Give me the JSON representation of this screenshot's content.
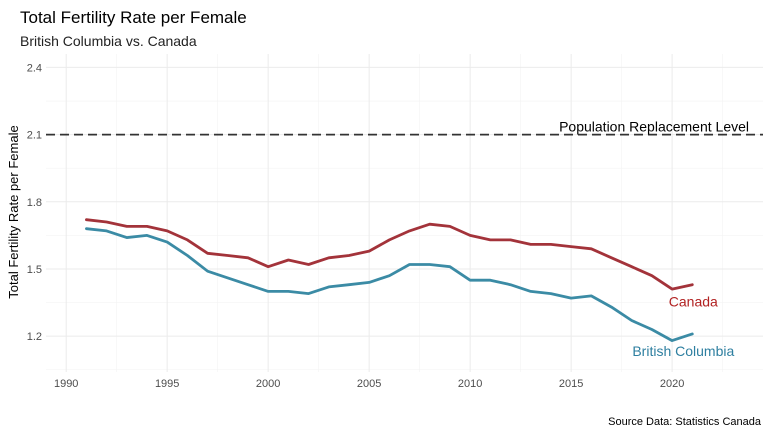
{
  "chart_data": {
    "type": "line",
    "title": "Total Fertility Rate per Female",
    "subtitle": "British Columbia vs. Canada",
    "ylabel": "Total Fertility Rate per Female",
    "xlabel": "",
    "caption": "Source Data: Statistics Canada",
    "xlim": [
      1989,
      2024.5
    ],
    "ylim": [
      1.04,
      2.46
    ],
    "x_ticks": [
      1990,
      1995,
      2000,
      2005,
      2010,
      2015,
      2020
    ],
    "x_tick_labels": [
      "1990",
      "1995",
      "2000",
      "2005",
      "2010",
      "2015",
      "2020"
    ],
    "y_ticks": [
      1.2,
      1.5,
      1.8,
      2.1,
      2.4
    ],
    "y_tick_labels": [
      "1.2",
      "1.5",
      "1.8",
      "2.1",
      "2.4"
    ],
    "grid": true,
    "reference_line": {
      "y": 2.1,
      "label": "Population Replacement Level",
      "style": "dashed",
      "color": "#333333"
    },
    "series": [
      {
        "name": "Canada",
        "color": "#a3333a",
        "label_color": "#b22222",
        "x": [
          1991,
          1992,
          1993,
          1994,
          1995,
          1996,
          1997,
          1998,
          1999,
          2000,
          2001,
          2002,
          2003,
          2004,
          2005,
          2006,
          2007,
          2008,
          2009,
          2010,
          2011,
          2012,
          2013,
          2014,
          2015,
          2016,
          2017,
          2018,
          2019,
          2020,
          2021
        ],
        "values": [
          1.72,
          1.71,
          1.69,
          1.69,
          1.67,
          1.63,
          1.57,
          1.56,
          1.55,
          1.51,
          1.54,
          1.52,
          1.55,
          1.56,
          1.58,
          1.63,
          1.67,
          1.7,
          1.69,
          1.65,
          1.63,
          1.63,
          1.61,
          1.61,
          1.6,
          1.59,
          1.55,
          1.51,
          1.47,
          1.41,
          1.43
        ]
      },
      {
        "name": "British Columbia",
        "color": "#3b8ba5",
        "label_color": "#2e7fa0",
        "x": [
          1991,
          1992,
          1993,
          1994,
          1995,
          1996,
          1997,
          1998,
          1999,
          2000,
          2001,
          2002,
          2003,
          2004,
          2005,
          2006,
          2007,
          2008,
          2009,
          2010,
          2011,
          2012,
          2013,
          2014,
          2015,
          2016,
          2017,
          2018,
          2019,
          2020,
          2021
        ],
        "values": [
          1.68,
          1.67,
          1.64,
          1.65,
          1.62,
          1.56,
          1.49,
          1.46,
          1.43,
          1.4,
          1.4,
          1.39,
          1.42,
          1.43,
          1.44,
          1.47,
          1.52,
          1.52,
          1.51,
          1.45,
          1.45,
          1.43,
          1.4,
          1.39,
          1.37,
          1.38,
          1.33,
          1.27,
          1.23,
          1.18,
          1.21
        ]
      }
    ]
  }
}
